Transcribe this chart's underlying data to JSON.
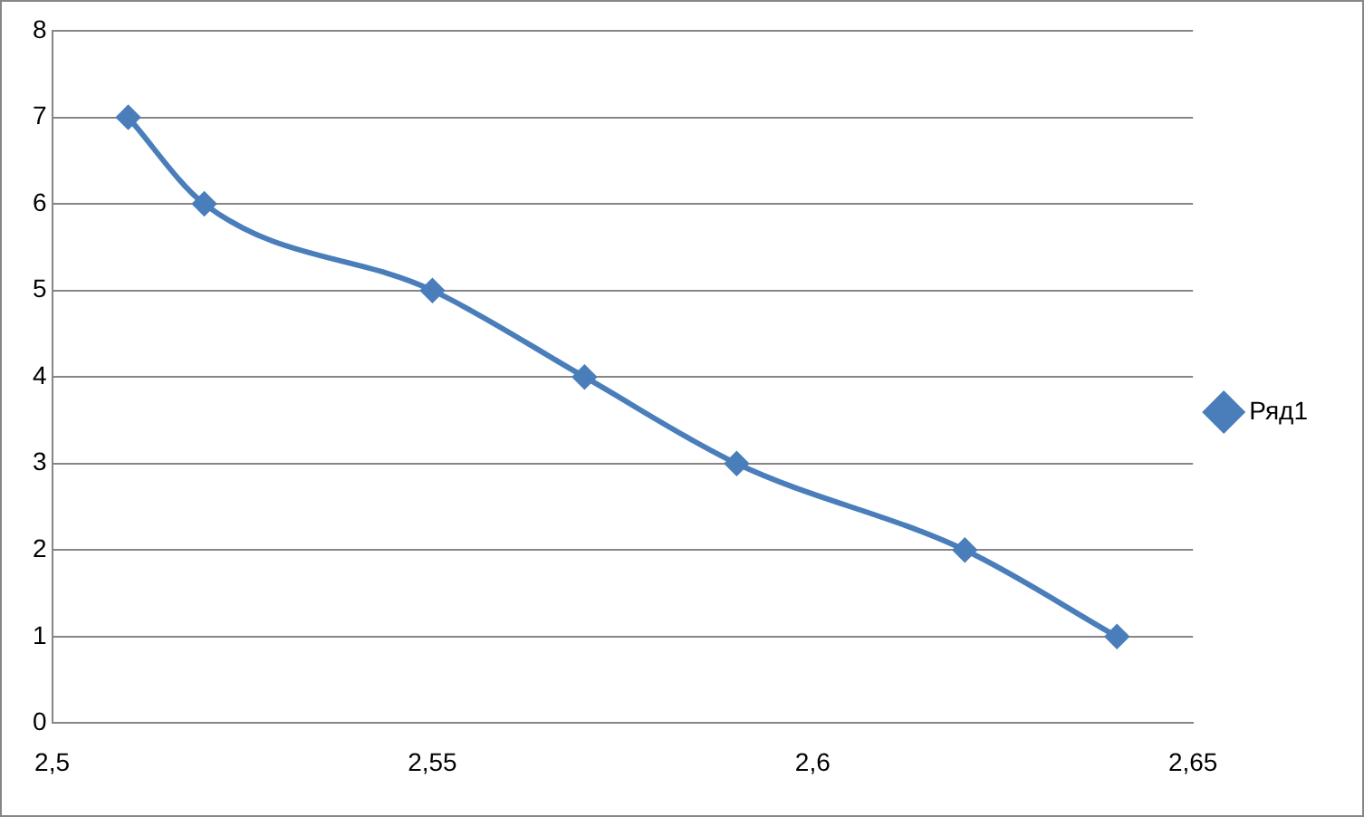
{
  "chart_data": {
    "type": "line",
    "x": [
      2.51,
      2.52,
      2.55,
      2.57,
      2.59,
      2.62,
      2.64
    ],
    "series": [
      {
        "name": "Ряд1",
        "color": "#4a7ebb",
        "values": [
          7,
          6,
          5,
          4,
          3,
          2,
          1
        ]
      }
    ],
    "xlim": [
      2.5,
      2.65
    ],
    "xticks": [
      {
        "value": 2.5,
        "label": "2,5"
      },
      {
        "value": 2.55,
        "label": "2,55"
      },
      {
        "value": 2.6,
        "label": "2,6"
      },
      {
        "value": 2.65,
        "label": "2,65"
      }
    ],
    "ylim": [
      0,
      8
    ],
    "yticks": [
      0,
      1,
      2,
      3,
      4,
      5,
      6,
      7,
      8
    ],
    "grid": "y",
    "legend": "right",
    "marker": "diamond",
    "line_style": "solid"
  }
}
